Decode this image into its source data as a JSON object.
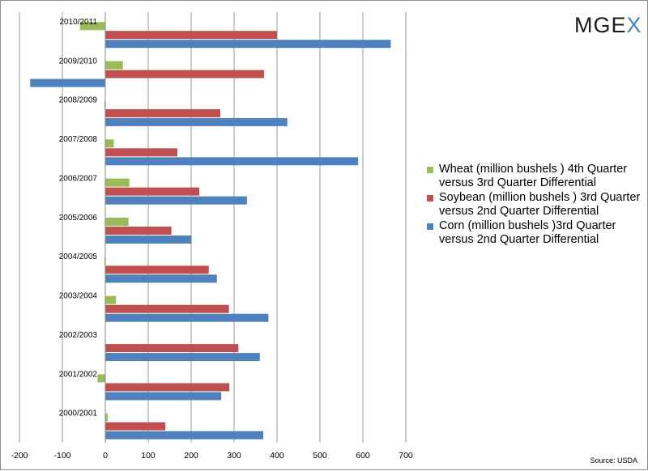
{
  "logo": {
    "text_main": "MGE",
    "text_accent": "X"
  },
  "source": "Source: USDA",
  "chart_data": {
    "type": "bar",
    "orientation": "horizontal",
    "categories": [
      "2010/2011",
      "2009/2010",
      "2008/2009",
      "2007/2008",
      "2006/2007",
      "2005/2006",
      "2004/2005",
      "2003/2004",
      "2002/2003",
      "2001/2002",
      "2000/2001"
    ],
    "series": [
      {
        "name": "Wheat (million bushels ) 4th Quarter versus 3rd Quarter Differential",
        "color": "#9bbb59",
        "values": [
          -59,
          41,
          -2,
          20,
          56,
          54,
          -2,
          25,
          -1,
          -18,
          6
        ]
      },
      {
        "name": "Soybean (million bushels ) 3rd Quarter versus 2nd Quarter Differential",
        "color": "#c0504d",
        "values": [
          400,
          370,
          268,
          168,
          219,
          154,
          241,
          288,
          310,
          289,
          140
        ]
      },
      {
        "name": "Corn (million bushels )3rd Quarter versus 2nd Quarter Differential",
        "color": "#4f81bd",
        "values": [
          665,
          -175,
          424,
          589,
          330,
          201,
          260,
          380,
          360,
          270,
          368
        ]
      }
    ],
    "xlim": [
      -200,
      700
    ],
    "xticks": [
      -200,
      -100,
      0,
      100,
      200,
      300,
      400,
      500,
      600,
      700
    ],
    "grid": true,
    "legend_position": "right"
  }
}
